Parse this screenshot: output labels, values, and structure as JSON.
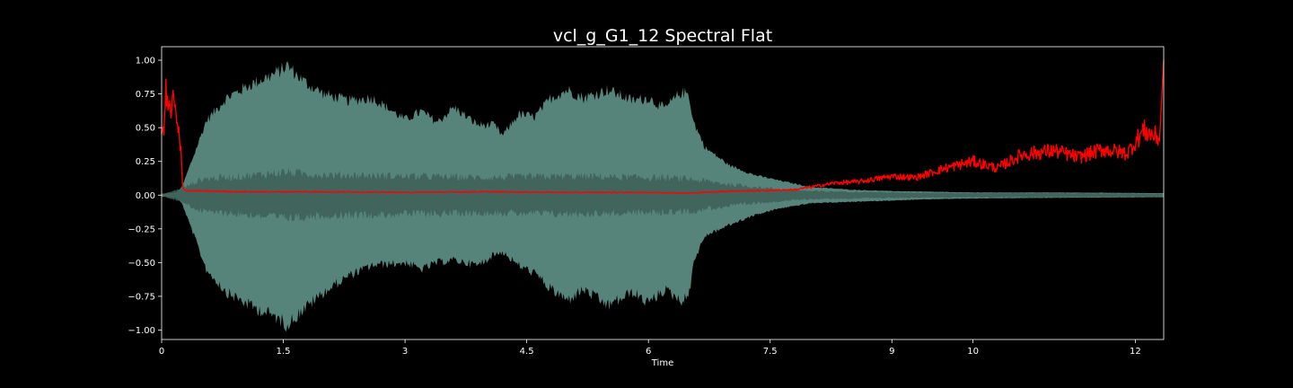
{
  "chart_data": {
    "type": "area",
    "title": "vcl_g_G1_12 Spectral Flat",
    "xlabel": "Time",
    "ylabel": "",
    "xlim": [
      0,
      12.35
    ],
    "ylim": [
      -1.07,
      1.1
    ],
    "x_ticks": [
      0,
      1.5,
      3,
      4.5,
      6,
      7.5,
      9,
      10,
      12
    ],
    "x_tick_labels": [
      "0",
      "1.5",
      "3",
      "4.5",
      "6",
      "7.5",
      "9",
      "10",
      "12"
    ],
    "y_ticks": [
      1.0,
      0.75,
      0.5,
      0.25,
      0.0,
      -0.25,
      -0.5,
      -0.75,
      -1.0
    ],
    "y_tick_labels": [
      "1.00",
      "0.75",
      "0.50",
      "0.25",
      "0.00",
      "−0.25",
      "−0.50",
      "−0.75",
      "−1.00"
    ],
    "grid": false,
    "background": "#000000",
    "colors": {
      "waveform_outer": "#5d8f85",
      "waveform_inner": "#3d5f58",
      "spectral_flatness": "#ff0000",
      "axes": "#ffffff",
      "text": "#ffffff"
    },
    "series": [
      {
        "kind": "waveform_envelope",
        "x": [
          0,
          0.18,
          0.25,
          0.4,
          0.55,
          0.8,
          1.1,
          1.4,
          1.55,
          1.65,
          1.8,
          2.0,
          2.3,
          2.6,
          3.0,
          3.2,
          3.4,
          3.6,
          3.9,
          4.1,
          4.2,
          4.4,
          4.6,
          4.8,
          5.0,
          5.2,
          5.5,
          5.8,
          6.0,
          6.2,
          6.4,
          6.5,
          6.55,
          6.7,
          7.0,
          7.3,
          7.6,
          8.0,
          8.5,
          9.0,
          9.5,
          10.0,
          11.0,
          12.35
        ],
        "upper": [
          0.01,
          0.02,
          0.06,
          0.3,
          0.55,
          0.72,
          0.82,
          0.9,
          0.96,
          0.9,
          0.82,
          0.75,
          0.7,
          0.72,
          0.56,
          0.62,
          0.54,
          0.65,
          0.52,
          0.52,
          0.44,
          0.6,
          0.58,
          0.72,
          0.78,
          0.72,
          0.78,
          0.7,
          0.72,
          0.64,
          0.76,
          0.75,
          0.55,
          0.35,
          0.22,
          0.15,
          0.11,
          0.06,
          0.04,
          0.03,
          0.025,
          0.02,
          0.02,
          0.015
        ],
        "lower": [
          -0.01,
          -0.02,
          -0.06,
          -0.3,
          -0.55,
          -0.72,
          -0.82,
          -0.9,
          -0.96,
          -0.9,
          -0.82,
          -0.72,
          -0.6,
          -0.52,
          -0.5,
          -0.55,
          -0.5,
          -0.48,
          -0.52,
          -0.44,
          -0.42,
          -0.52,
          -0.58,
          -0.7,
          -0.78,
          -0.7,
          -0.82,
          -0.72,
          -0.8,
          -0.7,
          -0.78,
          -0.75,
          -0.5,
          -0.3,
          -0.22,
          -0.15,
          -0.1,
          -0.06,
          -0.05,
          -0.04,
          -0.03,
          -0.025,
          -0.02,
          -0.015
        ]
      },
      {
        "kind": "waveform_core",
        "x": [
          0,
          0.25,
          0.5,
          1.0,
          1.5,
          2.0,
          3.0,
          4.0,
          5.0,
          6.0,
          6.5,
          7.0,
          7.5,
          8.0,
          9.0,
          10.0,
          11.0,
          12.35
        ],
        "upper": [
          0.005,
          0.05,
          0.12,
          0.14,
          0.17,
          0.15,
          0.14,
          0.13,
          0.14,
          0.13,
          0.12,
          0.08,
          0.05,
          0.03,
          0.02,
          0.015,
          0.015,
          0.01
        ],
        "lower": [
          -0.005,
          -0.05,
          -0.12,
          -0.14,
          -0.17,
          -0.15,
          -0.14,
          -0.13,
          -0.14,
          -0.13,
          -0.12,
          -0.08,
          -0.05,
          -0.03,
          -0.02,
          -0.015,
          -0.015,
          -0.01
        ]
      },
      {
        "kind": "spectral_flatness",
        "x": [
          0,
          0.05,
          0.1,
          0.15,
          0.2,
          0.24,
          0.26,
          0.3,
          0.5,
          1.0,
          2.0,
          3.0,
          4.0,
          5.0,
          6.0,
          6.5,
          7.0,
          7.5,
          7.8,
          8.0,
          8.3,
          8.6,
          9.0,
          9.3,
          9.6,
          10.0,
          10.3,
          10.6,
          11.0,
          11.3,
          11.6,
          11.9,
          12.1,
          12.3,
          12.35
        ],
        "y": [
          0.35,
          0.75,
          0.6,
          0.7,
          0.45,
          0.3,
          0.05,
          0.035,
          0.03,
          0.025,
          0.025,
          0.02,
          0.025,
          0.02,
          0.02,
          0.015,
          0.03,
          0.035,
          0.04,
          0.06,
          0.09,
          0.1,
          0.14,
          0.13,
          0.19,
          0.25,
          0.2,
          0.3,
          0.33,
          0.28,
          0.34,
          0.31,
          0.48,
          0.42,
          1.0
        ]
      }
    ]
  }
}
